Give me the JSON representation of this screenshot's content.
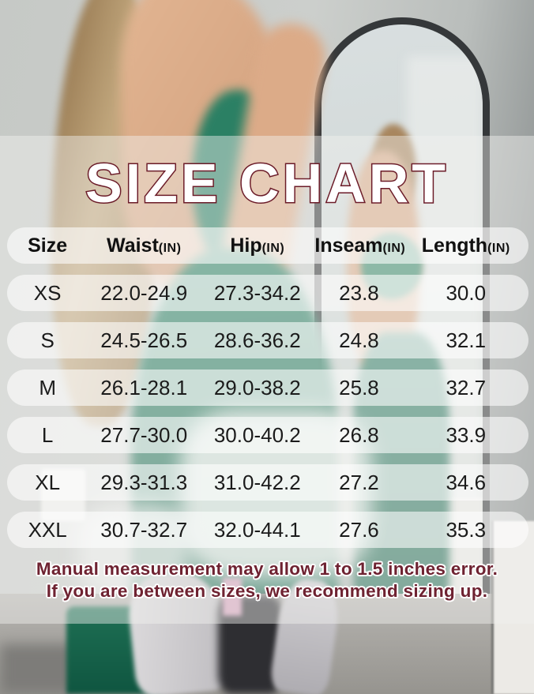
{
  "title": "SIZE CHART",
  "table": {
    "columns": [
      {
        "label": "Size",
        "unit": ""
      },
      {
        "label": "Waist",
        "unit": "(IN)"
      },
      {
        "label": "Hip",
        "unit": "(IN)"
      },
      {
        "label": "Inseam",
        "unit": "(IN)"
      },
      {
        "label": "Length",
        "unit": "(IN)"
      }
    ],
    "rows": [
      {
        "cells": [
          "XS",
          "22.0-24.9",
          "27.3-34.2",
          "23.8",
          "30.0"
        ]
      },
      {
        "cells": [
          "S",
          "24.5-26.5",
          "28.6-36.2",
          "24.8",
          "32.1"
        ]
      },
      {
        "cells": [
          "M",
          "26.1-28.1",
          "29.0-38.2",
          "25.8",
          "32.7"
        ]
      },
      {
        "cells": [
          "L",
          "27.7-30.0",
          "30.0-40.2",
          "26.8",
          "33.9"
        ]
      },
      {
        "cells": [
          "XL",
          "29.3-31.3",
          "31.0-42.2",
          "27.2",
          "34.6"
        ]
      },
      {
        "cells": [
          "XXL",
          "30.7-32.7",
          "32.0-44.1",
          "27.6",
          "35.3"
        ]
      }
    ]
  },
  "note_line1": "Manual measurement may allow 1 to 1.5 inches error.",
  "note_line2": "If you are between sizes, we recommend sizing up.",
  "colors": {
    "title_fill": "#ffffff",
    "title_outline": "#6b1b28",
    "note_text": "#6e2231",
    "row_band": "rgba(255,255,255,0.58)",
    "outfit_green": "#2f8166"
  },
  "chart_data": {
    "type": "table",
    "title": "SIZE CHART",
    "columns": [
      "Size",
      "Waist(IN)",
      "Hip(IN)",
      "Inseam(IN)",
      "Length(IN)"
    ],
    "rows": [
      [
        "XS",
        "22.0-24.9",
        "27.3-34.2",
        "23.8",
        "30.0"
      ],
      [
        "S",
        "24.5-26.5",
        "28.6-36.2",
        "24.8",
        "32.1"
      ],
      [
        "M",
        "26.1-28.1",
        "29.0-38.2",
        "25.8",
        "32.7"
      ],
      [
        "L",
        "27.7-30.0",
        "30.0-40.2",
        "26.8",
        "33.9"
      ],
      [
        "XL",
        "29.3-31.3",
        "31.0-42.2",
        "27.2",
        "34.6"
      ],
      [
        "XXL",
        "30.7-32.7",
        "32.0-44.1",
        "27.6",
        "35.3"
      ]
    ],
    "units": "inches",
    "notes": [
      "Manual measurement may allow 1 to 1.5 inches error.",
      "If you are between sizes, we recommend sizing up."
    ]
  }
}
